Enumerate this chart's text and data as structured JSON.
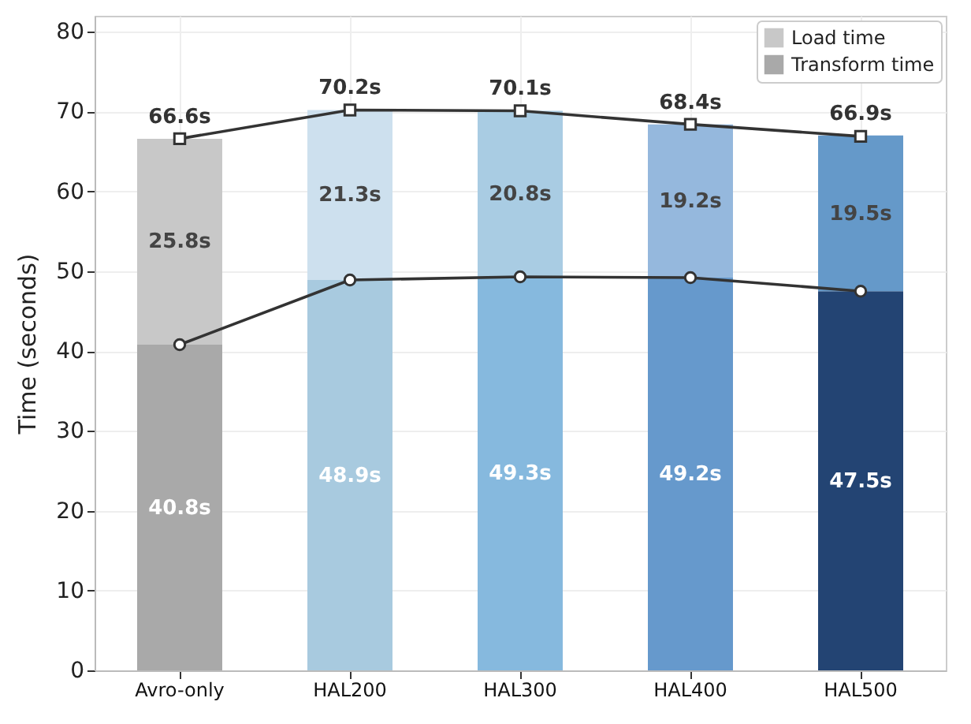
{
  "chart_data": {
    "type": "bar",
    "stacked": true,
    "ylabel": "Time (seconds)",
    "categories": [
      "Avro-only",
      "HAL200",
      "HAL300",
      "HAL400",
      "HAL500"
    ],
    "series": [
      {
        "name": "Transform time",
        "color": "#a9a9a9",
        "colors": [
          "#a9a9a9",
          "#a8cadf",
          "#86b9de",
          "#6699cc",
          "#234473"
        ],
        "values": [
          40.8,
          48.9,
          49.3,
          49.2,
          47.5
        ],
        "value_labels": [
          "40.8s",
          "48.9s",
          "49.3s",
          "49.2s",
          "47.5s"
        ]
      },
      {
        "name": "Load time",
        "color": "#c8c8c8",
        "colors": [
          "#c8c8c8",
          "#cde0ee",
          "#a9cce3",
          "#95b8dd",
          "#6599c9"
        ],
        "values": [
          25.8,
          21.3,
          20.8,
          19.2,
          19.5
        ],
        "value_labels": [
          "25.8s",
          "21.3s",
          "20.8s",
          "19.2s",
          "19.5s"
        ]
      },
      {
        "type": "line",
        "color": "#333333",
        "marker": "circle",
        "values": [
          40.8,
          48.9,
          49.3,
          49.2,
          47.5
        ]
      },
      {
        "type": "line",
        "color": "#333333",
        "marker": "square",
        "values": [
          66.6,
          70.2,
          70.1,
          68.4,
          66.9
        ]
      }
    ],
    "totals": [
      "66.6s",
      "70.2s",
      "70.1s",
      "68.4s",
      "66.9s"
    ],
    "ylim": [
      0,
      82
    ],
    "yticks": [
      0,
      10,
      20,
      30,
      40,
      50,
      60,
      70,
      80
    ],
    "grid": true,
    "legend": "top right"
  }
}
